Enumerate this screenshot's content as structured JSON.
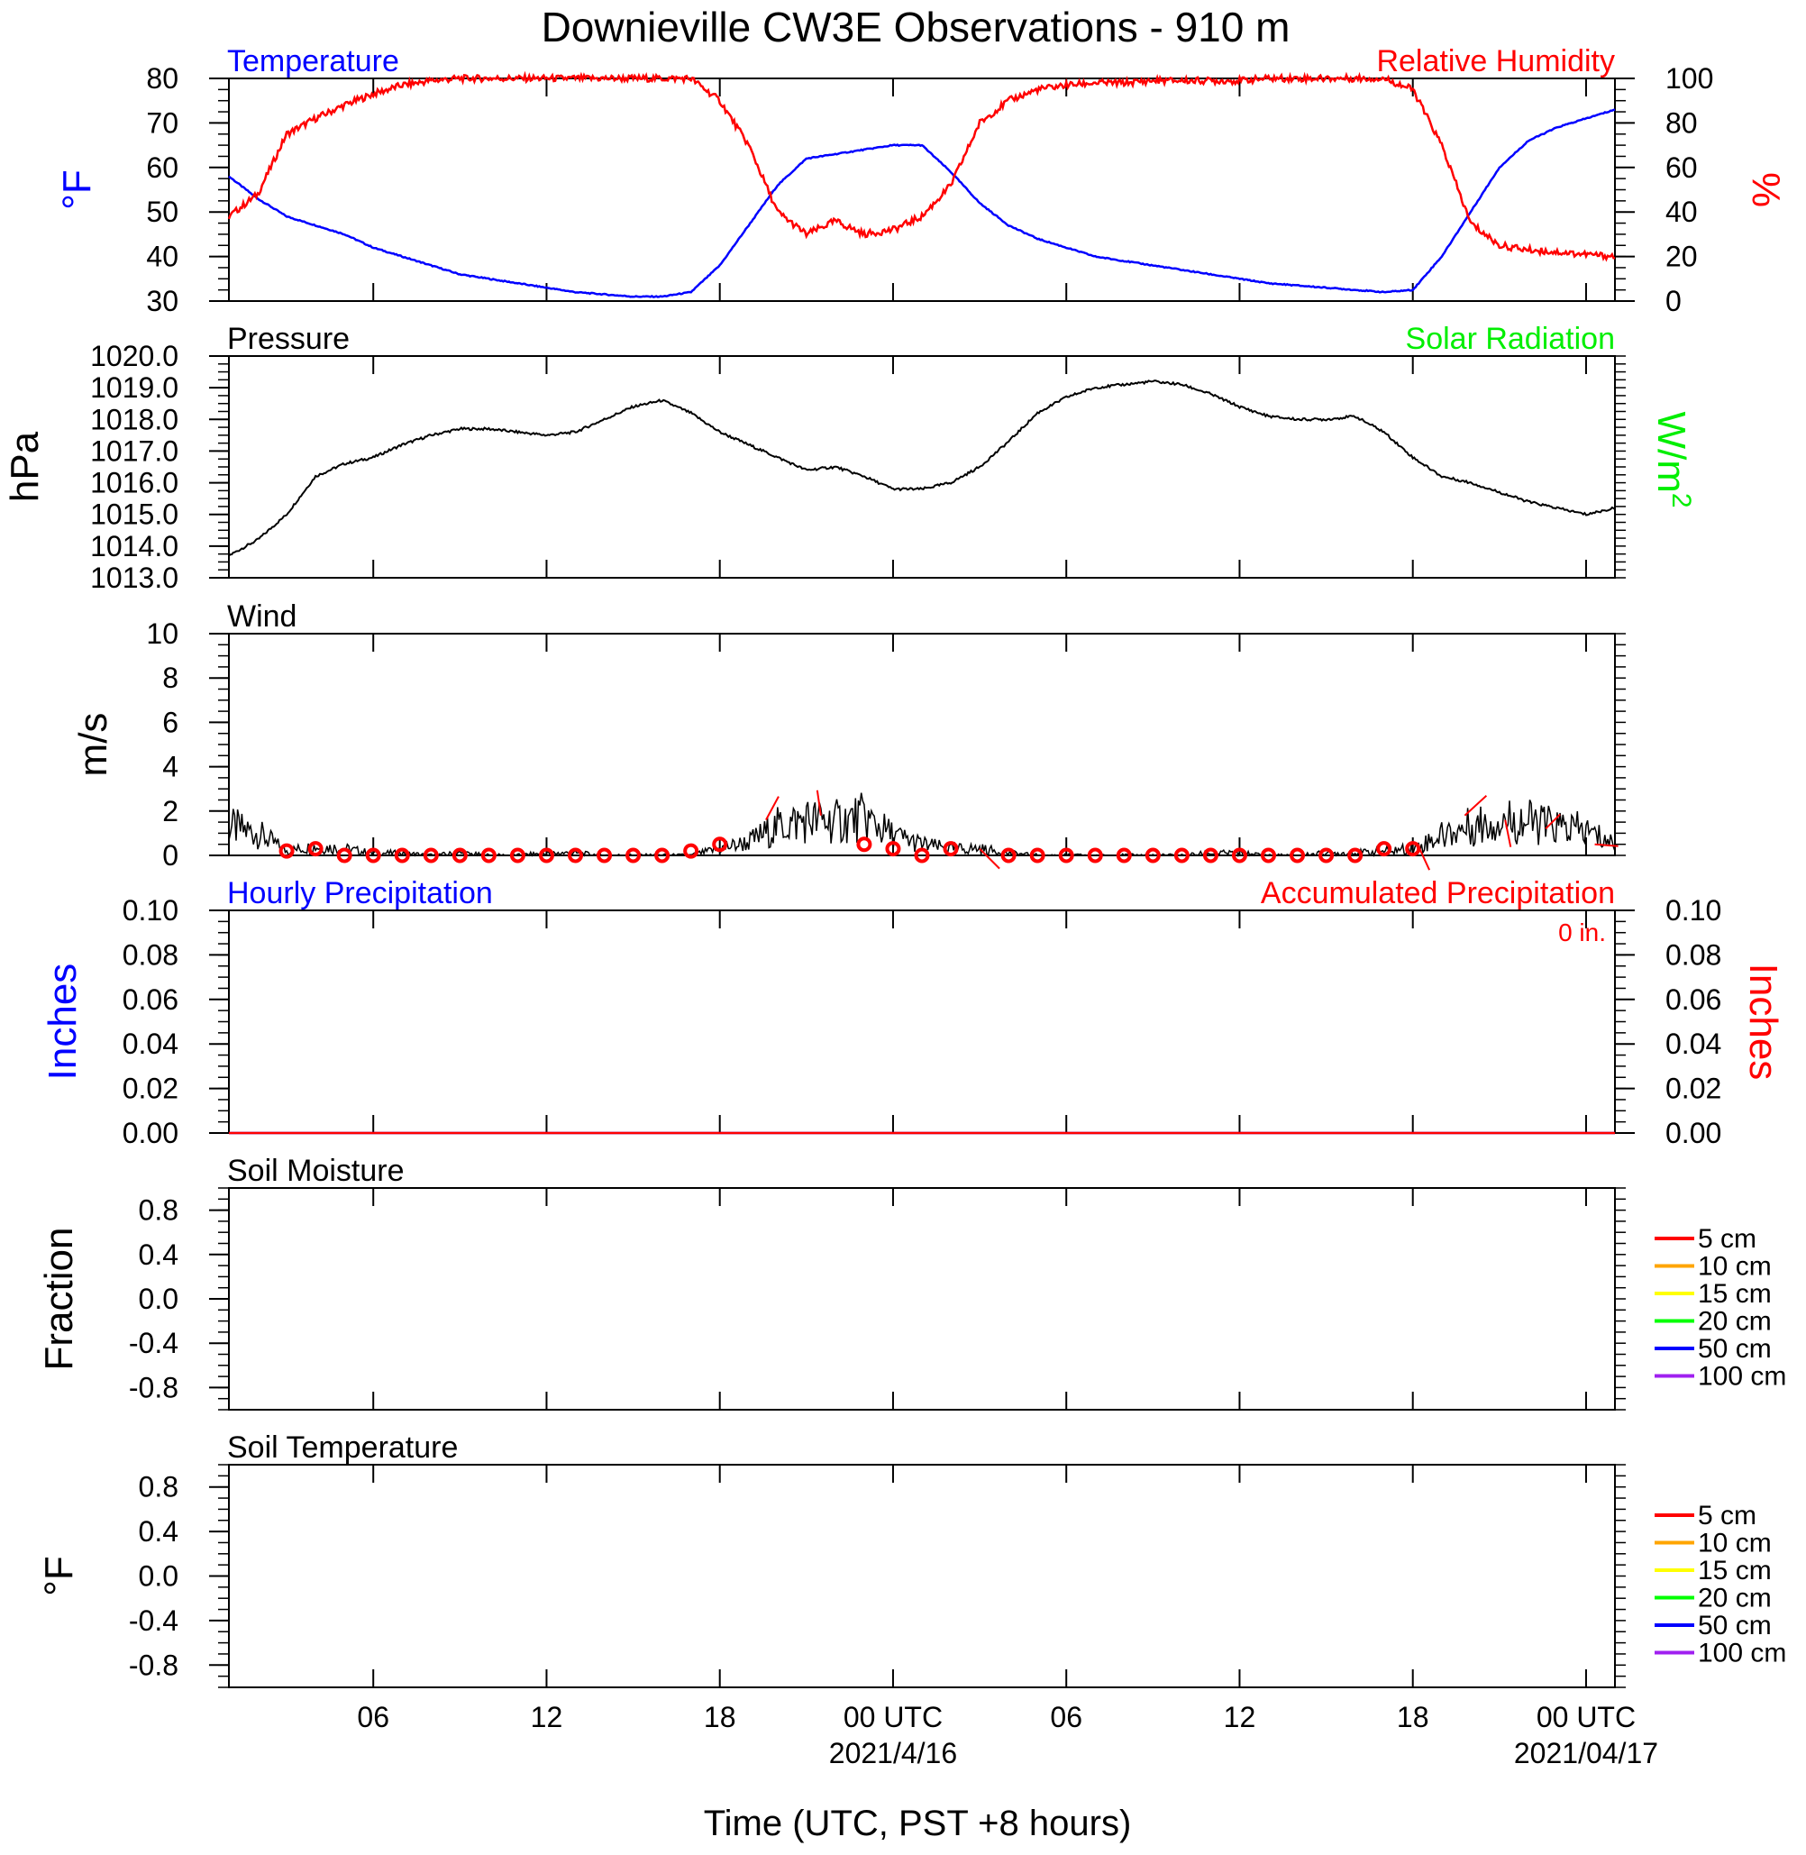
{
  "title": "Downieville CW3E Observations - 910 m",
  "x_axis": {
    "label": "Time (UTC, PST +8 hours)",
    "range_hours": [
      0,
      48
    ],
    "ticks": [
      {
        "hour": 5,
        "label": "06",
        "date": ""
      },
      {
        "hour": 11,
        "label": "12",
        "date": ""
      },
      {
        "hour": 17,
        "label": "18",
        "date": ""
      },
      {
        "hour": 23,
        "label": "00 UTC",
        "date": "2021/4/16"
      },
      {
        "hour": 29,
        "label": "06",
        "date": ""
      },
      {
        "hour": 35,
        "label": "12",
        "date": ""
      },
      {
        "hour": 41,
        "label": "18",
        "date": ""
      },
      {
        "hour": 47,
        "label": "00 UTC",
        "date": "2021/04/17"
      }
    ]
  },
  "chart_data": [
    {
      "panel": "temperature-humidity",
      "type": "line",
      "left_title": "Temperature",
      "right_title": "Relative Humidity",
      "ylabel_left": "°F",
      "ylabel_right": "%",
      "ylim_left": [
        30,
        80
      ],
      "ylim_right": [
        0,
        100
      ],
      "yticks_left": [
        "30",
        "40",
        "50",
        "60",
        "70",
        "80"
      ],
      "yticks_right": [
        "0",
        "20",
        "40",
        "60",
        "80",
        "100"
      ],
      "colors": {
        "left": "#0000ff",
        "right": "#ff0000"
      },
      "x_hours": [
        0,
        1,
        2,
        3,
        4,
        5,
        6,
        7,
        8,
        9,
        10,
        11,
        12,
        13,
        14,
        15,
        16,
        17,
        18,
        19,
        20,
        21,
        22,
        23,
        24,
        25,
        26,
        27,
        28,
        29,
        30,
        31,
        32,
        33,
        34,
        35,
        36,
        37,
        38,
        39,
        40,
        41,
        42,
        43,
        44,
        45,
        46,
        47,
        48
      ],
      "series": [
        {
          "axis": "left",
          "values": [
            58,
            53,
            49,
            47,
            45,
            42,
            40,
            38,
            36,
            35,
            34,
            33,
            32,
            31.5,
            31,
            31,
            32,
            38,
            47,
            56,
            62,
            63,
            64,
            65,
            65,
            59,
            52,
            47,
            44,
            42,
            40,
            39,
            38,
            37,
            36,
            35,
            34,
            33.5,
            33,
            32.5,
            32,
            32.5,
            40,
            50,
            60,
            66,
            69,
            71,
            73
          ]
        },
        {
          "axis": "right",
          "values": [
            38,
            48,
            75,
            82,
            88,
            93,
            97,
            99,
            100,
            100,
            100,
            100,
            100,
            100,
            100,
            100,
            100,
            90,
            70,
            40,
            30,
            36,
            30,
            32,
            38,
            52,
            80,
            90,
            95,
            97,
            98,
            98,
            99,
            99,
            99,
            99,
            100,
            100,
            100,
            100,
            100,
            95,
            70,
            35,
            25,
            23,
            22,
            21,
            20
          ]
        }
      ]
    },
    {
      "panel": "pressure-solar",
      "type": "line",
      "left_title": "Pressure",
      "right_title": "Solar Radiation",
      "ylabel_left": "hPa",
      "ylabel_right": "W/m",
      "ylabel_right_sup": "2",
      "ylim_left": [
        1013.0,
        1020.0
      ],
      "yticks_left": [
        "1013.0",
        "1014.0",
        "1015.0",
        "1016.0",
        "1017.0",
        "1018.0",
        "1019.0",
        "1020.0"
      ],
      "colors": {
        "line": "#000000",
        "right_title": "#00ee00"
      },
      "x_hours": [
        0,
        1,
        2,
        3,
        4,
        5,
        6,
        7,
        8,
        9,
        10,
        11,
        12,
        13,
        14,
        15,
        16,
        17,
        18,
        19,
        20,
        21,
        22,
        23,
        24,
        25,
        26,
        27,
        28,
        29,
        30,
        31,
        32,
        33,
        34,
        35,
        36,
        37,
        38,
        39,
        40,
        41,
        42,
        43,
        44,
        45,
        46,
        47,
        48
      ],
      "series": [
        {
          "axis": "left",
          "values": [
            1013.7,
            1014.2,
            1015.0,
            1016.2,
            1016.6,
            1016.8,
            1017.2,
            1017.5,
            1017.7,
            1017.7,
            1017.6,
            1017.5,
            1017.6,
            1018.0,
            1018.4,
            1018.6,
            1018.2,
            1017.6,
            1017.2,
            1016.8,
            1016.4,
            1016.5,
            1016.2,
            1015.8,
            1015.8,
            1016.0,
            1016.5,
            1017.3,
            1018.2,
            1018.7,
            1019.0,
            1019.1,
            1019.2,
            1019.1,
            1018.8,
            1018.4,
            1018.1,
            1018.0,
            1018.0,
            1018.1,
            1017.6,
            1016.8,
            1016.2,
            1016.0,
            1015.7,
            1015.4,
            1015.2,
            1015.0,
            1015.2
          ]
        }
      ]
    },
    {
      "panel": "wind",
      "type": "line",
      "left_title": "Wind",
      "ylabel_left": "m/s",
      "ylim_left": [
        0,
        10
      ],
      "yticks_left": [
        "0",
        "2",
        "4",
        "6",
        "8",
        "10"
      ],
      "colors": {
        "line": "#000000",
        "markers": "#ff0000",
        "barbs": "#ff0000"
      },
      "x_hours": [
        0,
        1,
        2,
        3,
        4,
        5,
        6,
        7,
        8,
        9,
        10,
        11,
        12,
        13,
        14,
        15,
        16,
        17,
        18,
        19,
        20,
        21,
        22,
        23,
        24,
        25,
        26,
        27,
        28,
        29,
        30,
        31,
        32,
        33,
        34,
        35,
        36,
        37,
        38,
        39,
        40,
        41,
        42,
        43,
        44,
        45,
        46,
        47,
        48
      ],
      "series": [
        {
          "axis": "left",
          "values": [
            1.3,
            1.0,
            0.2,
            0.4,
            0.3,
            0.1,
            0.1,
            0.0,
            0.1,
            0.0,
            0.0,
            0.1,
            0.1,
            0.0,
            0.0,
            0.0,
            0.0,
            0.3,
            0.6,
            1.3,
            1.6,
            1.5,
            1.7,
            0.9,
            0.5,
            0.3,
            0.3,
            0.1,
            0.0,
            0.0,
            0.0,
            0.0,
            0.0,
            0.0,
            0.1,
            0.1,
            0.0,
            0.0,
            0.1,
            0.1,
            0.2,
            0.3,
            0.9,
            1.3,
            1.6,
            1.5,
            1.3,
            1.1,
            0.5
          ]
        }
      ],
      "hourly_markers": {
        "hours": [
          2,
          3,
          4,
          5,
          6,
          7,
          8,
          9,
          10,
          11,
          12,
          13,
          14,
          15,
          16,
          17,
          18,
          19,
          20,
          21,
          22,
          23,
          24,
          25,
          26,
          27,
          28,
          29,
          30,
          31,
          32,
          33,
          34,
          35,
          36,
          37,
          38,
          39,
          40,
          41
        ],
        "values": [
          0.2,
          0.3,
          0.0,
          0.0,
          0.0,
          0.0,
          0.0,
          0.0,
          0.0,
          0.0,
          0.0,
          0.0,
          0.0,
          0.0,
          0.2,
          0.5,
          null,
          null,
          null,
          null,
          0.5,
          0.3,
          0.0,
          0.3,
          null,
          0.0,
          0.0,
          0.0,
          0.0,
          0.0,
          0.0,
          0.0,
          0.0,
          0.0,
          0.0,
          0.0,
          0.0,
          0.0,
          0.3,
          0.3
        ]
      },
      "barbs": [
        {
          "hour": 18.6,
          "speed": 1.6,
          "dx": 14,
          "dy": -26
        },
        {
          "hour": 20.5,
          "speed": 1.8,
          "dx": -4,
          "dy": -28
        },
        {
          "hour": 26.0,
          "speed": 0.3,
          "dx": 22,
          "dy": 22
        },
        {
          "hour": 41.2,
          "speed": 0.4,
          "dx": 12,
          "dy": 26
        },
        {
          "hour": 42.8,
          "speed": 1.8,
          "dx": 24,
          "dy": -22
        },
        {
          "hour": 44.2,
          "speed": 1.6,
          "dx": 6,
          "dy": 30
        },
        {
          "hour": 45.6,
          "speed": 1.2,
          "dx": 16,
          "dy": -16
        },
        {
          "hour": 47.3,
          "speed": 0.5,
          "dx": 26,
          "dy": 2
        }
      ]
    },
    {
      "panel": "precipitation",
      "type": "line",
      "left_title": "Hourly Precipitation",
      "right_title": "Accumulated Precipitation",
      "annotation": "0 in.",
      "ylabel_left": "Inches",
      "ylabel_right": "Inches",
      "ylim_left": [
        0.0,
        0.1
      ],
      "ylim_right": [
        0.0,
        0.1
      ],
      "yticks_left": [
        "0.00",
        "0.02",
        "0.04",
        "0.06",
        "0.08",
        "0.10"
      ],
      "yticks_right": [
        "0.00",
        "0.02",
        "0.04",
        "0.06",
        "0.08",
        "0.10"
      ],
      "colors": {
        "left": "#0000ff",
        "right": "#ff0000"
      },
      "x_hours": [
        0,
        48
      ],
      "series": [
        {
          "axis": "left",
          "values": [
            0,
            0
          ]
        },
        {
          "axis": "right",
          "values": [
            0,
            0
          ]
        }
      ]
    },
    {
      "panel": "soil-moisture",
      "type": "line",
      "left_title": "Soil Moisture",
      "ylabel_left": "Fraction",
      "ylim_left": [
        -1.0,
        1.0
      ],
      "yticks_left": [
        "-0.8",
        "-0.4",
        "0.0",
        "0.4",
        "0.8"
      ],
      "series": [],
      "legend": [
        {
          "label": "5 cm",
          "color": "#ff0000"
        },
        {
          "label": "10 cm",
          "color": "#ffa500"
        },
        {
          "label": "15 cm",
          "color": "#ffff00"
        },
        {
          "label": "20 cm",
          "color": "#00ff00"
        },
        {
          "label": "50 cm",
          "color": "#0000ff"
        },
        {
          "label": "100 cm",
          "color": "#a020f0"
        }
      ]
    },
    {
      "panel": "soil-temperature",
      "type": "line",
      "left_title": "Soil Temperature",
      "ylabel_left": "°F",
      "ylim_left": [
        -1.0,
        1.0
      ],
      "yticks_left": [
        "-0.8",
        "-0.4",
        "0.0",
        "0.4",
        "0.8"
      ],
      "series": [],
      "legend": [
        {
          "label": "5 cm",
          "color": "#ff0000"
        },
        {
          "label": "10 cm",
          "color": "#ffa500"
        },
        {
          "label": "15 cm",
          "color": "#ffff00"
        },
        {
          "label": "20 cm",
          "color": "#00ff00"
        },
        {
          "label": "50 cm",
          "color": "#0000ff"
        },
        {
          "label": "100 cm",
          "color": "#a020f0"
        }
      ]
    }
  ]
}
